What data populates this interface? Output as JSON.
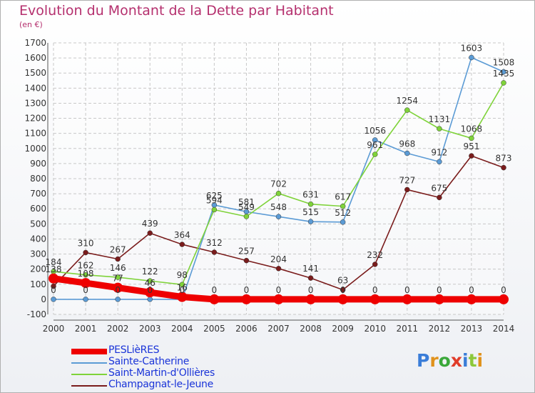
{
  "title": "Evolution du Montant de la Dette par Habitant",
  "subtitle": "(en €)",
  "logo": [
    "P",
    "r",
    "o",
    "x",
    "i",
    "t",
    "i"
  ],
  "logo_colors": [
    "#3a7dd8",
    "#e0921c",
    "#3aa83a",
    "#e03c2a",
    "#3a7dd8",
    "#8cc83a",
    "#e0921c"
  ],
  "chart_data": {
    "type": "line",
    "x": [
      "2000",
      "2001",
      "2002",
      "2003",
      "2004",
      "2005",
      "2006",
      "2007",
      "2008",
      "2009",
      "2010",
      "2011",
      "2012",
      "2013",
      "2014"
    ],
    "ylim": [
      -100,
      1700
    ],
    "yticks": [
      -100,
      0,
      100,
      200,
      300,
      400,
      500,
      600,
      700,
      800,
      900,
      1000,
      1100,
      1200,
      1300,
      1400,
      1500,
      1600,
      1700
    ],
    "grid": true,
    "legend_position": "bottom-left",
    "series": [
      {
        "name": "PESLièRES",
        "color": "#ee0000",
        "values": [
          138,
          108,
          77,
          46,
          16,
          0,
          0,
          0,
          0,
          0,
          0,
          0,
          0,
          0,
          0
        ],
        "labels": [
          "138",
          "108",
          "77",
          "46",
          "16",
          "0",
          "0",
          "0",
          "0",
          "0",
          "0",
          "0",
          "0",
          "0",
          "0"
        ]
      },
      {
        "name": "Sainte-Catherine",
        "color": "#5b9bd5",
        "values": [
          0,
          0,
          0,
          0,
          0,
          625,
          581,
          548,
          515,
          512,
          1056,
          968,
          912,
          1603,
          1508
        ],
        "labels": [
          "0",
          "0",
          "0",
          "0",
          "0",
          "625",
          "581",
          "548",
          "515",
          "512",
          "1056",
          "968",
          "912",
          "1603",
          "1508"
        ]
      },
      {
        "name": "Saint-Martin-d'Ollières",
        "color": "#7fd33a",
        "values": [
          184,
          162,
          146,
          122,
          98,
          594,
          549,
          702,
          631,
          617,
          961,
          1254,
          1131,
          1068,
          1435
        ],
        "labels": [
          "184",
          "162",
          "146",
          "122",
          "98",
          "594",
          "549",
          "702",
          "631",
          "617",
          "961",
          "1254",
          "1131",
          "1068",
          "1435"
        ]
      },
      {
        "name": "Champagnat-le-Jeune",
        "color": "#7a1c1c",
        "values": [
          87,
          310,
          267,
          439,
          364,
          312,
          257,
          204,
          141,
          63,
          232,
          727,
          675,
          951,
          873
        ],
        "labels": [
          "",
          "310",
          "267",
          "439",
          "364",
          "312",
          "257",
          "204",
          "141",
          "63",
          "232",
          "727",
          "675",
          "951",
          "873"
        ]
      }
    ]
  }
}
